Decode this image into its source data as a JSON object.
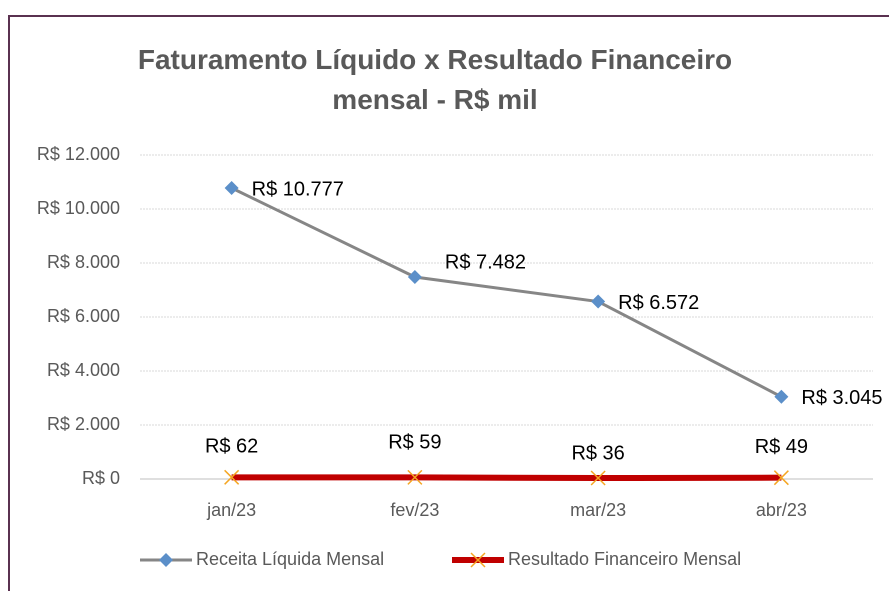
{
  "chart_data": {
    "type": "line",
    "title": "Faturamento Líquido x Resultado Financeiro mensal - R$ mil",
    "categories": [
      "jan/23",
      "fev/23",
      "mar/23",
      "abr/23"
    ],
    "series": [
      {
        "name": "Receita Líquida Mensal",
        "color": "#868686",
        "marker_color": "#5b8fc9",
        "marker": "diamond",
        "values": [
          10777,
          7482,
          6572,
          3045
        ],
        "value_labels": [
          "R$ 10.777",
          "R$ 7.482",
          "R$ 6.572",
          "R$ 3.045"
        ]
      },
      {
        "name": "Resultado Financeiro Mensal",
        "color": "#c00000",
        "marker_color": "#f5a623",
        "marker": "x",
        "values": [
          62,
          59,
          36,
          49
        ],
        "value_labels": [
          "R$ 62",
          "R$ 59",
          "R$ 36",
          "R$ 49"
        ]
      }
    ],
    "ylim": [
      0,
      12000
    ],
    "yticks": [
      {
        "value": 0,
        "label": "R$ 0"
      },
      {
        "value": 2000,
        "label": "R$ 2.000"
      },
      {
        "value": 4000,
        "label": "R$ 4.000"
      },
      {
        "value": 6000,
        "label": "R$ 6.000"
      },
      {
        "value": 8000,
        "label": "R$ 8.000"
      },
      {
        "value": 10000,
        "label": "R$ 10.000"
      },
      {
        "value": 12000,
        "label": "R$ 12.000"
      }
    ],
    "grid": true,
    "legend": "bottom"
  }
}
